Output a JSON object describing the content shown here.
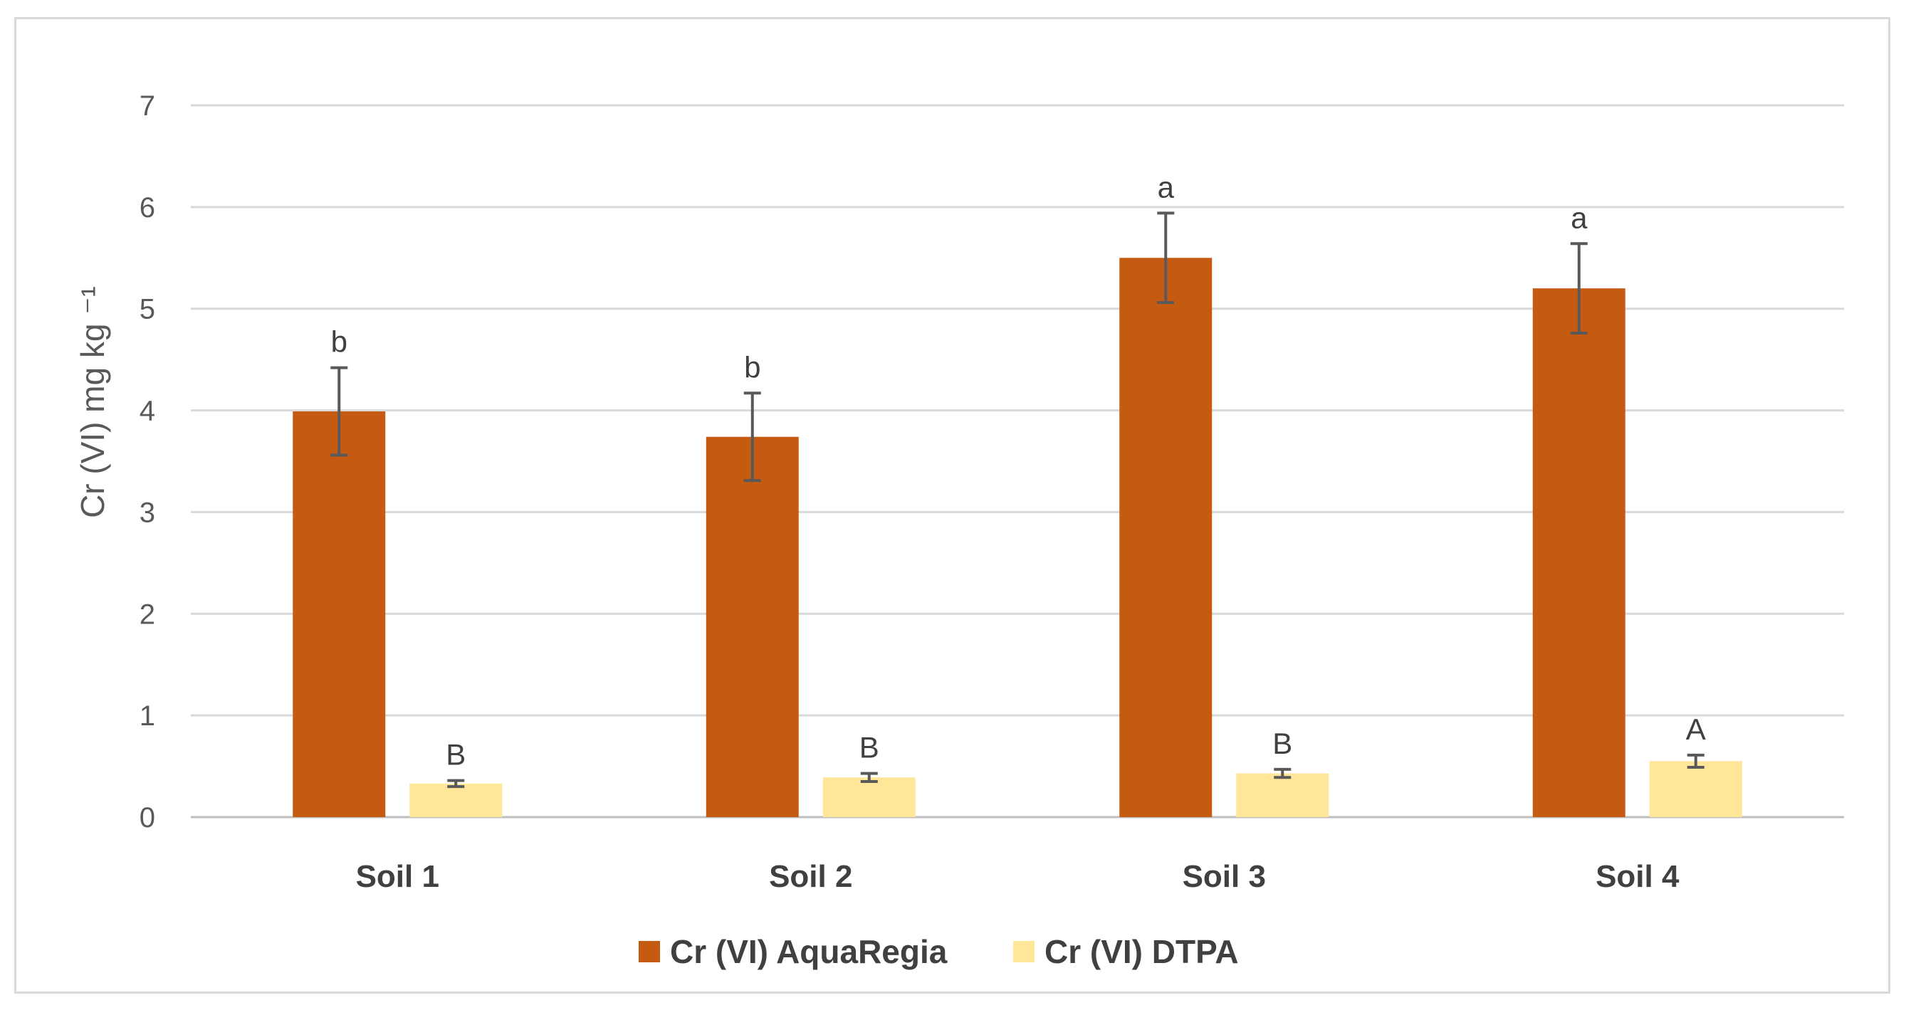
{
  "chart_data": {
    "type": "bar",
    "categories": [
      "Soil 1",
      "Soil 2",
      "Soil 3",
      "Soil 4"
    ],
    "series": [
      {
        "name": "Cr (VI) AquaRegia",
        "color": "#c55a11",
        "values": [
          3.99,
          3.74,
          5.5,
          5.2
        ],
        "errors": [
          0.43,
          0.43,
          0.44,
          0.44
        ],
        "letters": [
          "b",
          "b",
          "a",
          "a"
        ]
      },
      {
        "name": "Cr (VI) DTPA",
        "color": "#ffe699",
        "values": [
          0.33,
          0.39,
          0.43,
          0.55
        ],
        "errors": [
          0.03,
          0.04,
          0.04,
          0.06
        ],
        "letters": [
          "B",
          "B",
          "B",
          "A"
        ]
      }
    ],
    "ylabel": "Cr (VI)   mg kg ⁻¹",
    "ylim": [
      0,
      7
    ],
    "yticks": [
      0,
      1,
      2,
      3,
      4,
      5,
      6,
      7
    ],
    "grid": true,
    "legend": "bottom"
  }
}
